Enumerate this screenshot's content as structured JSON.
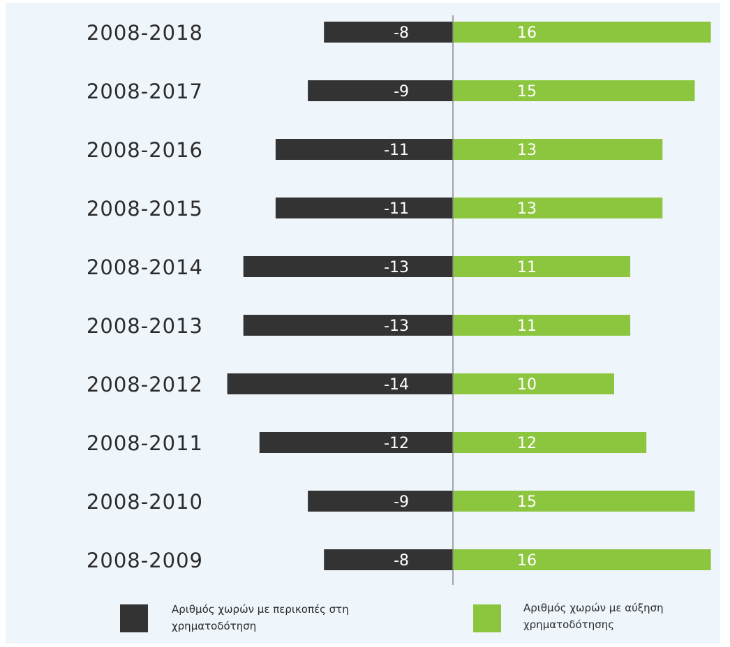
{
  "chart_data": {
    "type": "bar",
    "orientation": "horizontal",
    "stacking": "diverging",
    "categories": [
      "2008-2018",
      "2008-2017",
      "2008-2016",
      "2008-2015",
      "2008-2014",
      "2008-2013",
      "2008-2012",
      "2008-2011",
      "2008-2010",
      "2008-2009"
    ],
    "series": [
      {
        "name": "Αριθμός χωρών με περικοπές στη χρηματοδότηση",
        "legend_lines": [
          "Αριθμός χωρών με περικοπές στη",
          "χρηματοδότηση"
        ],
        "color": "#333333",
        "values": [
          -8,
          -9,
          -11,
          -11,
          -13,
          -13,
          -14,
          -12,
          -9,
          -8
        ],
        "labels": [
          "-8",
          "-9",
          "-11",
          "-11",
          "-13",
          "-13",
          "-14",
          "-12",
          "-9",
          "-8"
        ]
      },
      {
        "name": "Αριθμός χωρών με αύξηση χρηματοδότησης",
        "legend_lines": [
          "Αριθμός χωρών με αύξηση",
          "χρηματοδότησης"
        ],
        "color": "#8cc63f",
        "values": [
          16,
          15,
          13,
          13,
          11,
          11,
          10,
          12,
          15,
          16
        ],
        "labels": [
          "16",
          "15",
          "13",
          "13",
          "11",
          "11",
          "10",
          "12",
          "15",
          "16"
        ]
      }
    ],
    "xlim": [
      -14,
      16
    ],
    "grid": false,
    "zero_line": true,
    "legend_position": "bottom"
  }
}
